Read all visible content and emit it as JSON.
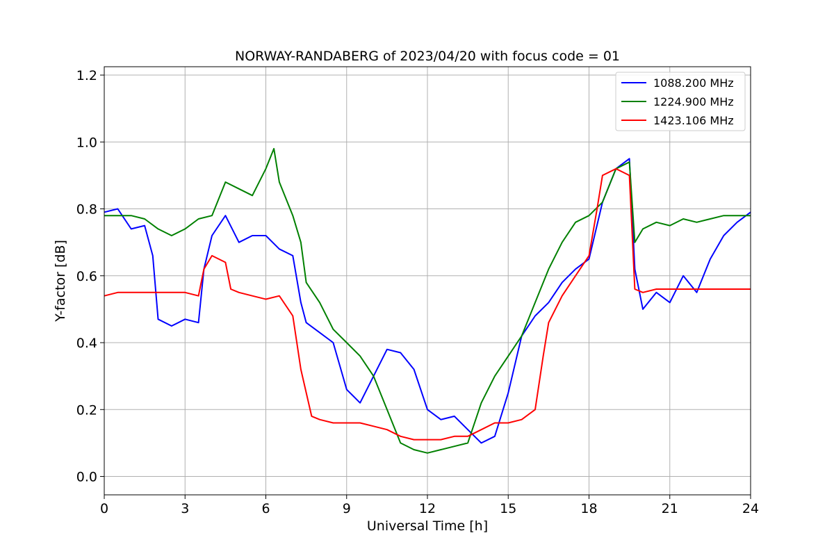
{
  "chart_data": {
    "type": "line",
    "title": "NORWAY-RANDABERG of 2023/04/20 with focus code = 01",
    "xlabel": "Universal Time [h]",
    "ylabel": "Y-factor [dB]",
    "xlim": [
      0,
      24
    ],
    "ylim": [
      -0.055,
      1.225
    ],
    "xticks": [
      "0",
      "3",
      "6",
      "9",
      "12",
      "15",
      "18",
      "21",
      "24"
    ],
    "yticks": [
      "0.0",
      "0.2",
      "0.4",
      "0.6",
      "0.8",
      "1.0",
      "1.2"
    ],
    "grid": true,
    "legend_position": "top-right",
    "series": [
      {
        "name": "1088.200 MHz",
        "color": "#0000ff",
        "x": [
          0,
          0.5,
          1.0,
          1.5,
          1.8,
          2.0,
          2.5,
          3.0,
          3.5,
          3.7,
          4.0,
          4.5,
          5.0,
          5.5,
          6.0,
          6.5,
          7.0,
          7.3,
          7.5,
          8.0,
          8.5,
          9.0,
          9.5,
          10.0,
          10.5,
          11.0,
          11.5,
          12.0,
          12.5,
          13.0,
          13.5,
          14.0,
          14.5,
          15.0,
          15.5,
          16.0,
          16.5,
          17.0,
          17.5,
          18.0,
          18.5,
          19.0,
          19.5,
          19.7,
          20.0,
          20.5,
          21.0,
          21.5,
          22.0,
          22.5,
          23.0,
          23.5,
          24.0
        ],
        "y": [
          0.79,
          0.8,
          0.74,
          0.75,
          0.66,
          0.47,
          0.45,
          0.47,
          0.46,
          0.62,
          0.72,
          0.78,
          0.7,
          0.72,
          0.72,
          0.68,
          0.66,
          0.52,
          0.46,
          0.43,
          0.4,
          0.26,
          0.22,
          0.3,
          0.38,
          0.37,
          0.32,
          0.2,
          0.17,
          0.18,
          0.14,
          0.1,
          0.12,
          0.25,
          0.42,
          0.48,
          0.52,
          0.58,
          0.62,
          0.65,
          0.82,
          0.92,
          0.95,
          0.62,
          0.5,
          0.55,
          0.52,
          0.6,
          0.55,
          0.65,
          0.72,
          0.76,
          0.79
        ]
      },
      {
        "name": "1224.900 MHz",
        "color": "#008000",
        "x": [
          0,
          0.5,
          1.0,
          1.5,
          2.0,
          2.5,
          3.0,
          3.5,
          4.0,
          4.5,
          5.0,
          5.5,
          6.0,
          6.3,
          6.5,
          7.0,
          7.3,
          7.5,
          8.0,
          8.5,
          9.0,
          9.5,
          10.0,
          10.5,
          11.0,
          11.5,
          12.0,
          12.5,
          13.0,
          13.5,
          14.0,
          14.5,
          15.0,
          15.5,
          16.0,
          16.5,
          17.0,
          17.5,
          18.0,
          18.5,
          19.0,
          19.5,
          19.7,
          20.0,
          20.5,
          21.0,
          21.5,
          22.0,
          22.5,
          23.0,
          23.5,
          24.0
        ],
        "y": [
          0.78,
          0.78,
          0.78,
          0.77,
          0.74,
          0.72,
          0.74,
          0.77,
          0.78,
          0.88,
          0.86,
          0.84,
          0.92,
          0.98,
          0.88,
          0.78,
          0.7,
          0.58,
          0.52,
          0.44,
          0.4,
          0.36,
          0.3,
          0.2,
          0.1,
          0.08,
          0.07,
          0.08,
          0.09,
          0.1,
          0.22,
          0.3,
          0.36,
          0.42,
          0.52,
          0.62,
          0.7,
          0.76,
          0.78,
          0.82,
          0.92,
          0.94,
          0.7,
          0.74,
          0.76,
          0.75,
          0.77,
          0.76,
          0.77,
          0.78,
          0.78,
          0.78
        ]
      },
      {
        "name": "1423.106 MHz",
        "color": "#ff0000",
        "x": [
          0,
          0.5,
          1.0,
          1.5,
          2.0,
          2.5,
          3.0,
          3.5,
          3.7,
          4.0,
          4.5,
          4.7,
          5.0,
          5.5,
          6.0,
          6.5,
          7.0,
          7.3,
          7.7,
          8.0,
          8.5,
          9.0,
          9.5,
          10.0,
          10.5,
          11.0,
          11.5,
          12.0,
          12.5,
          13.0,
          13.5,
          14.0,
          14.5,
          15.0,
          15.5,
          16.0,
          16.3,
          16.5,
          17.0,
          17.5,
          18.0,
          18.3,
          18.5,
          19.0,
          19.5,
          19.7,
          20.0,
          20.5,
          21.0,
          21.5,
          22.0,
          22.5,
          23.0,
          23.5,
          24.0
        ],
        "y": [
          0.54,
          0.55,
          0.55,
          0.55,
          0.55,
          0.55,
          0.55,
          0.54,
          0.62,
          0.66,
          0.64,
          0.56,
          0.55,
          0.54,
          0.53,
          0.54,
          0.48,
          0.32,
          0.18,
          0.17,
          0.16,
          0.16,
          0.16,
          0.15,
          0.14,
          0.12,
          0.11,
          0.11,
          0.11,
          0.12,
          0.12,
          0.14,
          0.16,
          0.16,
          0.17,
          0.2,
          0.36,
          0.46,
          0.54,
          0.6,
          0.66,
          0.8,
          0.9,
          0.92,
          0.9,
          0.56,
          0.55,
          0.56,
          0.56,
          0.56,
          0.56,
          0.56,
          0.56,
          0.56,
          0.56
        ]
      }
    ]
  }
}
